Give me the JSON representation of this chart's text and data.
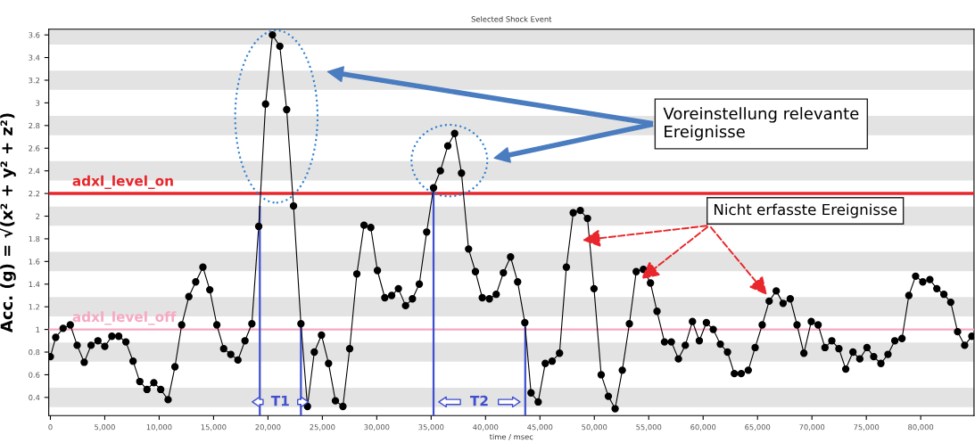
{
  "chart_data": {
    "type": "line",
    "title": "Selected Shock Event",
    "xlabel": "time / msec",
    "ylabel": "Acc. (g) = √(x² + y² + z²)",
    "series": [
      {
        "color": "#000000",
        "x": [
          0,
          490,
          1170,
          1830,
          2460,
          3110,
          3740,
          4370,
          5000,
          5650,
          6280,
          6940,
          7600,
          8220,
          8880,
          9510,
          10140,
          10820,
          11450,
          12070,
          12730,
          13360,
          14020,
          14650,
          15300,
          15930,
          16580,
          17240,
          17890,
          18520,
          19150,
          19780,
          20410,
          21090,
          21720,
          22350,
          23030,
          23630,
          24260,
          24920,
          25570,
          26200,
          26890,
          27510,
          28170,
          28830,
          29450,
          30060,
          30740,
          31370,
          31990,
          32650,
          33280,
          33910,
          34590,
          35220,
          35850,
          36530,
          37160,
          37790,
          38440,
          39070,
          39700,
          40350,
          40980,
          41640,
          42300,
          42950,
          43610,
          44180,
          44840,
          45490,
          46120,
          46800,
          47430,
          48060,
          48710,
          49370,
          49970,
          50630,
          51290,
          51910,
          52570,
          53220,
          53850,
          54510,
          55160,
          55760,
          56450,
          57080,
          57730,
          58360,
          59020,
          59650,
          60300,
          60930,
          61580,
          62240,
          62870,
          63500,
          64150,
          64780,
          65430,
          66070,
          66720,
          67350,
          68010,
          68630,
          69260,
          69940,
          70570,
          71200,
          71830,
          72480,
          73110,
          73770,
          74400,
          75060,
          75680,
          76340,
          76990,
          77620,
          78280,
          78910,
          79530,
          80190,
          80840,
          81480,
          82130,
          82760,
          83390,
          84040,
          84700
        ],
        "values": [
          0.76,
          0.93,
          1.01,
          1.04,
          0.86,
          0.71,
          0.86,
          0.9,
          0.85,
          0.94,
          0.94,
          0.89,
          0.72,
          0.54,
          0.47,
          0.53,
          0.47,
          0.38,
          0.67,
          1.04,
          1.29,
          1.42,
          1.55,
          1.35,
          1.04,
          0.83,
          0.78,
          0.73,
          0.9,
          1.05,
          1.91,
          2.99,
          3.6,
          3.5,
          2.94,
          2.09,
          1.05,
          0.32,
          0.8,
          0.95,
          0.7,
          0.37,
          0.32,
          0.83,
          1.49,
          1.92,
          1.9,
          1.52,
          1.28,
          1.3,
          1.36,
          1.21,
          1.27,
          1.4,
          1.86,
          2.25,
          2.4,
          2.62,
          2.73,
          2.38,
          1.71,
          1.51,
          1.28,
          1.27,
          1.31,
          1.5,
          1.64,
          1.42,
          1.06,
          0.44,
          0.36,
          0.7,
          0.72,
          0.79,
          1.55,
          2.03,
          2.05,
          1.98,
          1.36,
          0.6,
          0.41,
          0.3,
          0.64,
          1.05,
          1.51,
          1.53,
          1.41,
          1.16,
          0.89,
          0.89,
          0.74,
          0.86,
          1.07,
          0.9,
          1.06,
          1.0,
          0.87,
          0.8,
          0.61,
          0.61,
          0.64,
          0.84,
          1.04,
          1.25,
          1.34,
          1.23,
          1.27,
          1.04,
          0.79,
          1.07,
          1.04,
          0.84,
          0.9,
          0.83,
          0.65,
          0.8,
          0.74,
          0.84,
          0.76,
          0.7,
          0.78,
          0.9,
          0.92,
          1.3,
          1.47,
          1.42,
          1.44,
          1.36,
          1.31,
          1.24,
          0.98,
          0.86,
          0.94
        ]
      }
    ],
    "xlim": [
      -150,
      84900
    ],
    "ylim": [
      0.24,
      3.65
    ],
    "xticks": [
      0,
      {
        "value": 5000,
        "label": "5,000"
      },
      {
        "value": 10000,
        "label": "10,000"
      },
      {
        "value": 15000,
        "label": "15,000"
      },
      {
        "value": 20000,
        "label": "20,000"
      },
      {
        "value": 25000,
        "label": "25,000"
      },
      {
        "value": 30000,
        "label": "30,000"
      },
      {
        "value": 35000,
        "label": "35,000"
      },
      {
        "value": 40000,
        "label": "40,000"
      },
      {
        "value": 45000,
        "label": "45,000"
      },
      {
        "value": 50000,
        "label": "50,000"
      },
      {
        "value": 55000,
        "label": "55,000"
      },
      {
        "value": 60000,
        "label": "60,000"
      },
      {
        "value": 65000,
        "label": "65,000"
      },
      {
        "value": 70000,
        "label": "70,000"
      },
      {
        "value": 75000,
        "label": "75,000"
      },
      {
        "value": 80000,
        "label": "80,000"
      }
    ],
    "yticks": [
      0.4,
      0.6,
      0.8,
      1,
      1.2,
      1.4,
      1.6,
      1.8,
      2,
      2.2,
      2.4,
      2.6,
      2.8,
      3,
      3.2,
      3.4,
      3.6
    ],
    "bands": [
      {
        "axis": "y",
        "from": 3.515,
        "to": 3.685,
        "color": "#e3e3e3"
      },
      {
        "axis": "y",
        "from": 3.115,
        "to": 3.285,
        "color": "#e3e3e3"
      },
      {
        "axis": "y",
        "from": 2.715,
        "to": 2.885,
        "color": "#e3e3e3"
      },
      {
        "axis": "y",
        "from": 2.315,
        "to": 2.485,
        "color": "#e3e3e3"
      },
      {
        "axis": "y",
        "from": 1.915,
        "to": 2.085,
        "color": "#e3e3e3"
      },
      {
        "axis": "y",
        "from": 1.515,
        "to": 1.685,
        "color": "#e3e3e3"
      },
      {
        "axis": "y",
        "from": 1.115,
        "to": 1.285,
        "color": "#e3e3e3"
      },
      {
        "axis": "y",
        "from": 0.715,
        "to": 0.885,
        "color": "#e3e3e3"
      },
      {
        "axis": "y",
        "from": 0.315,
        "to": 0.485,
        "color": "#e3e3e3"
      }
    ],
    "marker": "circle",
    "line_style": "solid",
    "legend": false,
    "ref_lines": [
      {
        "axis": "y",
        "value": 2.2,
        "label": "adxl_level_on",
        "color": "#e8262b"
      },
      {
        "axis": "y",
        "value": 1,
        "label": "adxl_level_off",
        "color": "#f7a8c4"
      },
      {
        "axis": "x",
        "value": 19250,
        "color": "#3f4fcf"
      },
      {
        "axis": "x",
        "value": 23030,
        "color": "#3f4fcf"
      },
      {
        "axis": "x",
        "value": 35220,
        "color": "#3f4fcf"
      },
      {
        "axis": "x",
        "value": 43650,
        "color": "#3f4fcf"
      }
    ],
    "annotations": [
      "T1",
      "T2",
      "Voreinstellung relevante\nEreignisse",
      "Nicht erfasste Ereignisse"
    ]
  }
}
